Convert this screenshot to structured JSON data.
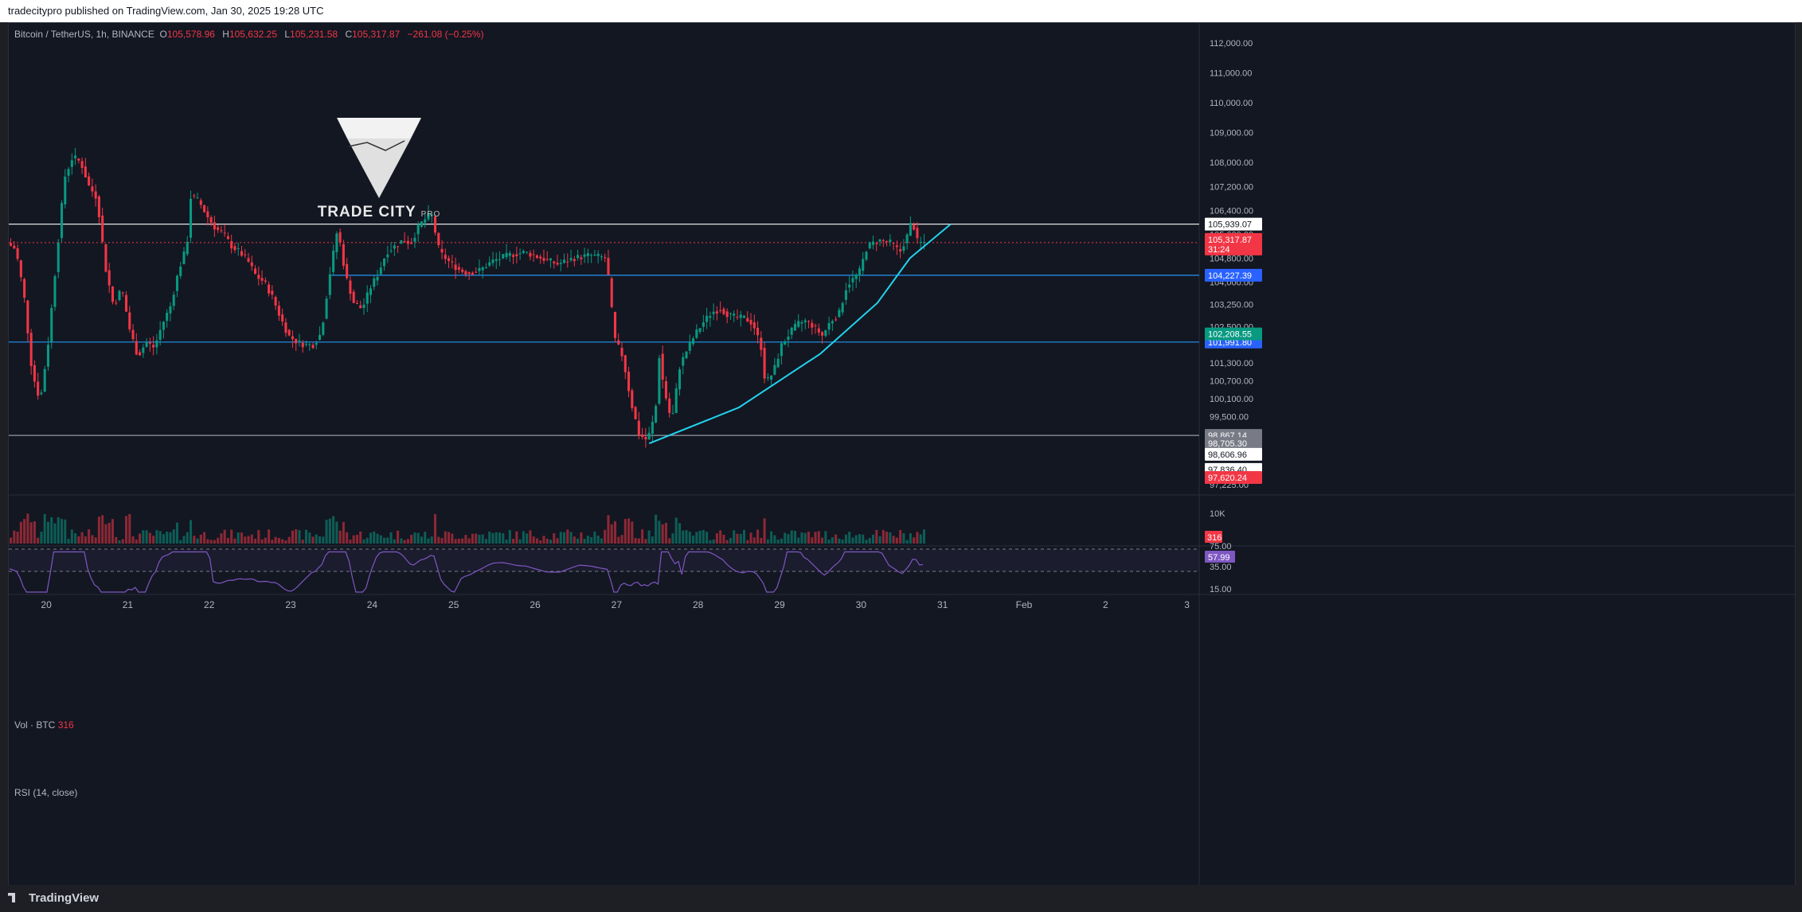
{
  "header": {
    "published": "tradecitypro published on TradingView.com, Jan 30, 2025 19:28 UTC"
  },
  "legend": {
    "symbol": "Bitcoin / TetherUS, 1h, BINANCE",
    "o_key": "O",
    "o": "105,578.96",
    "h_key": "H",
    "h": "105,632.25",
    "l_key": "L",
    "l": "105,231.58",
    "c_key": "C",
    "c": "105,317.87",
    "change": "−261.08 (−0.25%)"
  },
  "brand": {
    "name": "TRADE CITY",
    "suffix": "PRO"
  },
  "footer": {
    "logo": "TradingView"
  },
  "colors": {
    "up": "#089981",
    "down": "#f23645",
    "bg": "#131722",
    "grid": "#2a2e39",
    "cyan": "#22d3ee",
    "level": "#2962ff",
    "rsi": "#7e57c2"
  },
  "chart_data": {
    "type": "candlestick",
    "symbol": "BTCUSDT",
    "interval": "1h",
    "exchange": "BINANCE",
    "x_ticks": [
      "20",
      "21",
      "22",
      "23",
      "24",
      "25",
      "26",
      "27",
      "28",
      "29",
      "30",
      "31",
      "Feb",
      "2",
      "3"
    ],
    "y_ticks": [
      "112,000.00",
      "111,000.00",
      "110,000.00",
      "109,000.00",
      "108,000.00",
      "107,200.00",
      "106,400.00",
      "105,600.00",
      "104,800.00",
      "104,000.00",
      "103,250.00",
      "102,500.00",
      "101,300.00",
      "100,700.00",
      "100,100.00",
      "99,500.00",
      "97,225.00"
    ],
    "y_range": [
      96900,
      112400
    ],
    "x_range_days": [
      19.54,
      34.15
    ],
    "close_path": [
      [
        19.55,
        105300
      ],
      [
        19.65,
        105100
      ],
      [
        19.75,
        103600
      ],
      [
        19.85,
        101000
      ],
      [
        19.95,
        100000
      ],
      [
        20.05,
        102000
      ],
      [
        20.15,
        104800
      ],
      [
        20.25,
        107500
      ],
      [
        20.35,
        108200
      ],
      [
        20.45,
        108000
      ],
      [
        20.55,
        107200
      ],
      [
        20.65,
        106800
      ],
      [
        20.75,
        104500
      ],
      [
        20.85,
        103200
      ],
      [
        20.95,
        103800
      ],
      [
        21.05,
        102400
      ],
      [
        21.15,
        101500
      ],
      [
        21.25,
        102000
      ],
      [
        21.35,
        101800
      ],
      [
        21.45,
        102600
      ],
      [
        21.55,
        103200
      ],
      [
        21.65,
        104400
      ],
      [
        21.75,
        105200
      ],
      [
        21.8,
        106900
      ],
      [
        21.9,
        106700
      ],
      [
        22.0,
        106200
      ],
      [
        22.1,
        105800
      ],
      [
        22.2,
        105600
      ],
      [
        22.3,
        105200
      ],
      [
        22.4,
        105000
      ],
      [
        22.5,
        104700
      ],
      [
        22.6,
        104200
      ],
      [
        22.7,
        104000
      ],
      [
        22.8,
        103500
      ],
      [
        22.9,
        102800
      ],
      [
        23.0,
        102200
      ],
      [
        23.1,
        102000
      ],
      [
        23.2,
        101900
      ],
      [
        23.3,
        101900
      ],
      [
        23.4,
        102300
      ],
      [
        23.5,
        104200
      ],
      [
        23.6,
        105800
      ],
      [
        23.7,
        104200
      ],
      [
        23.8,
        103300
      ],
      [
        23.9,
        103100
      ],
      [
        24.0,
        103800
      ],
      [
        24.1,
        104300
      ],
      [
        24.2,
        105000
      ],
      [
        24.3,
        105200
      ],
      [
        24.4,
        105400
      ],
      [
        24.5,
        105300
      ],
      [
        24.6,
        105900
      ],
      [
        24.75,
        106300
      ],
      [
        24.85,
        105000
      ],
      [
        25.0,
        104600
      ],
      [
        25.1,
        104400
      ],
      [
        25.2,
        104300
      ],
      [
        25.35,
        104400
      ],
      [
        25.5,
        104700
      ],
      [
        25.7,
        104900
      ],
      [
        25.9,
        105000
      ],
      [
        26.1,
        104800
      ],
      [
        26.3,
        104600
      ],
      [
        26.5,
        104800
      ],
      [
        26.7,
        104900
      ],
      [
        26.9,
        104800
      ],
      [
        27.0,
        102100
      ],
      [
        27.1,
        101500
      ],
      [
        27.2,
        100000
      ],
      [
        27.3,
        98900
      ],
      [
        27.4,
        98700
      ],
      [
        27.5,
        99600
      ],
      [
        27.55,
        101600
      ],
      [
        27.6,
        100500
      ],
      [
        27.7,
        99300
      ],
      [
        27.8,
        101200
      ],
      [
        27.9,
        101800
      ],
      [
        28.0,
        102300
      ],
      [
        28.1,
        102700
      ],
      [
        28.2,
        103000
      ],
      [
        28.3,
        103100
      ],
      [
        28.4,
        102900
      ],
      [
        28.5,
        102800
      ],
      [
        28.6,
        102800
      ],
      [
        28.7,
        102600
      ],
      [
        28.8,
        101800
      ],
      [
        28.85,
        100600
      ],
      [
        28.95,
        101000
      ],
      [
        29.05,
        101900
      ],
      [
        29.15,
        102300
      ],
      [
        29.25,
        102600
      ],
      [
        29.35,
        102700
      ],
      [
        29.45,
        102500
      ],
      [
        29.55,
        102200
      ],
      [
        29.65,
        102700
      ],
      [
        29.75,
        102900
      ],
      [
        29.85,
        103900
      ],
      [
        30.0,
        104300
      ],
      [
        30.1,
        105200
      ],
      [
        30.25,
        105400
      ],
      [
        30.4,
        105300
      ],
      [
        30.5,
        105000
      ],
      [
        30.6,
        105600
      ],
      [
        30.65,
        106100
      ],
      [
        30.72,
        105300
      ],
      [
        30.8,
        105320
      ]
    ],
    "levels": [
      {
        "label": "105,939.07",
        "value": 105939.07
      },
      {
        "label": "104,227.39",
        "value": 104227.39
      },
      {
        "label": "101,991.80",
        "value": 101991.8
      },
      {
        "label": "98,867.14",
        "value": 98867.14
      }
    ],
    "current_price": {
      "label": "105,317.87",
      "countdown": "31:24",
      "value": 105317.87
    },
    "price_labels": [
      "102,208.55",
      "98,705.30",
      "98,606.96",
      "97,836.40",
      "97,620.24"
    ],
    "trend_curve": [
      [
        27.4,
        98600
      ],
      [
        28.5,
        99800
      ],
      [
        29.5,
        101600
      ],
      [
        30.2,
        103300
      ],
      [
        30.6,
        104800
      ],
      [
        31.1,
        105939
      ]
    ],
    "volume": {
      "label": "Vol · BTC",
      "value": "316",
      "axis_tick": "10K"
    },
    "rsi": {
      "label": "RSI (14, close)",
      "value_text": "57.99",
      "upper": "75.00",
      "mid": "35.00",
      "lower": "15.00"
    }
  }
}
